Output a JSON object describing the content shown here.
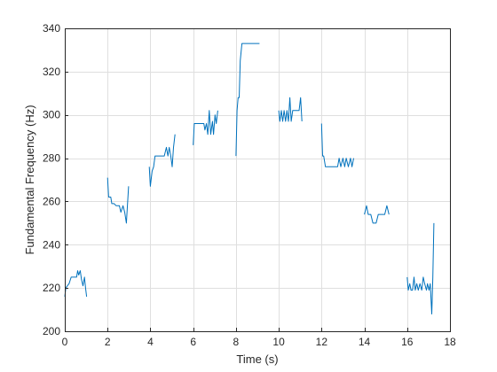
{
  "chart_data": {
    "type": "line",
    "title": "",
    "xlabel": "Time (s)",
    "ylabel": "Fundamental Frequency (Hz)",
    "xlim": [
      0,
      18
    ],
    "ylim": [
      200,
      340
    ],
    "xticks": [
      0,
      2,
      4,
      6,
      8,
      10,
      12,
      14,
      16,
      18
    ],
    "yticks": [
      200,
      220,
      240,
      260,
      280,
      300,
      320,
      340
    ],
    "grid": true,
    "legend": "none",
    "line_color": "#0072BD",
    "segments": [
      [
        [
          0.0,
          216
        ],
        [
          0.05,
          220
        ],
        [
          0.12,
          221
        ],
        [
          0.2,
          222
        ],
        [
          0.3,
          225
        ],
        [
          0.45,
          225
        ],
        [
          0.55,
          225
        ],
        [
          0.6,
          228
        ],
        [
          0.65,
          226
        ],
        [
          0.72,
          228
        ],
        [
          0.78,
          224
        ],
        [
          0.85,
          221
        ],
        [
          0.92,
          225
        ],
        [
          0.97,
          220
        ],
        [
          1.02,
          216
        ]
      ],
      [
        [
          2.0,
          271
        ],
        [
          2.05,
          262
        ],
        [
          2.15,
          262
        ],
        [
          2.2,
          259
        ],
        [
          2.3,
          259
        ],
        [
          2.4,
          258
        ],
        [
          2.55,
          258
        ],
        [
          2.62,
          255
        ],
        [
          2.72,
          258
        ],
        [
          2.8,
          255
        ],
        [
          2.88,
          250
        ],
        [
          2.98,
          267
        ]
      ],
      [
        [
          3.95,
          276
        ],
        [
          4.0,
          267
        ],
        [
          4.08,
          274
        ],
        [
          4.15,
          276
        ],
        [
          4.22,
          281
        ],
        [
          4.35,
          281
        ],
        [
          4.5,
          281
        ],
        [
          4.65,
          281
        ],
        [
          4.75,
          285
        ],
        [
          4.82,
          281
        ],
        [
          4.88,
          285
        ],
        [
          4.95,
          281
        ],
        [
          5.02,
          276
        ],
        [
          5.08,
          285
        ],
        [
          5.15,
          291
        ]
      ],
      [
        [
          6.0,
          286
        ],
        [
          6.05,
          296
        ],
        [
          6.2,
          296
        ],
        [
          6.4,
          296
        ],
        [
          6.5,
          296
        ],
        [
          6.55,
          293
        ],
        [
          6.62,
          296
        ],
        [
          6.68,
          291
        ],
        [
          6.75,
          302
        ],
        [
          6.82,
          291
        ],
        [
          6.9,
          297
        ],
        [
          6.95,
          291
        ],
        [
          7.02,
          300
        ],
        [
          7.08,
          296
        ],
        [
          7.15,
          302
        ]
      ],
      [
        [
          8.0,
          281
        ],
        [
          8.05,
          302
        ],
        [
          8.1,
          308
        ],
        [
          8.15,
          308
        ],
        [
          8.2,
          325
        ],
        [
          8.28,
          333
        ],
        [
          8.5,
          333
        ],
        [
          8.8,
          333
        ],
        [
          9.1,
          333
        ]
      ],
      [
        [
          10.0,
          302
        ],
        [
          10.05,
          297
        ],
        [
          10.12,
          302
        ],
        [
          10.18,
          297
        ],
        [
          10.25,
          302
        ],
        [
          10.32,
          297
        ],
        [
          10.38,
          302
        ],
        [
          10.45,
          297
        ],
        [
          10.52,
          308
        ],
        [
          10.58,
          297
        ],
        [
          10.65,
          302
        ],
        [
          10.72,
          302
        ],
        [
          10.85,
          302
        ],
        [
          10.95,
          302
        ],
        [
          11.02,
          308
        ],
        [
          11.08,
          297
        ]
      ],
      [
        [
          12.0,
          296
        ],
        [
          12.05,
          281
        ],
        [
          12.1,
          281
        ],
        [
          12.18,
          276
        ],
        [
          12.4,
          276
        ],
        [
          12.6,
          276
        ],
        [
          12.75,
          276
        ],
        [
          12.82,
          280
        ],
        [
          12.9,
          276
        ],
        [
          13.0,
          280
        ],
        [
          13.08,
          276
        ],
        [
          13.15,
          280
        ],
        [
          13.25,
          276
        ],
        [
          13.35,
          280
        ],
        [
          13.42,
          276
        ],
        [
          13.5,
          280
        ]
      ],
      [
        [
          14.0,
          254
        ],
        [
          14.1,
          258
        ],
        [
          14.18,
          254
        ],
        [
          14.3,
          254
        ],
        [
          14.4,
          250
        ],
        [
          14.55,
          250
        ],
        [
          14.65,
          254
        ],
        [
          14.8,
          254
        ],
        [
          14.95,
          254
        ],
        [
          15.05,
          258
        ],
        [
          15.15,
          254
        ]
      ],
      [
        [
          16.0,
          225
        ],
        [
          16.05,
          219
        ],
        [
          16.12,
          222
        ],
        [
          16.18,
          219
        ],
        [
          16.25,
          219
        ],
        [
          16.32,
          225
        ],
        [
          16.38,
          219
        ],
        [
          16.45,
          222
        ],
        [
          16.52,
          219
        ],
        [
          16.6,
          222
        ],
        [
          16.68,
          219
        ],
        [
          16.75,
          225
        ],
        [
          16.82,
          222
        ],
        [
          16.9,
          219
        ],
        [
          16.95,
          222
        ],
        [
          17.02,
          219
        ],
        [
          17.08,
          222
        ],
        [
          17.15,
          208
        ],
        [
          17.2,
          225
        ],
        [
          17.25,
          250
        ]
      ]
    ]
  }
}
